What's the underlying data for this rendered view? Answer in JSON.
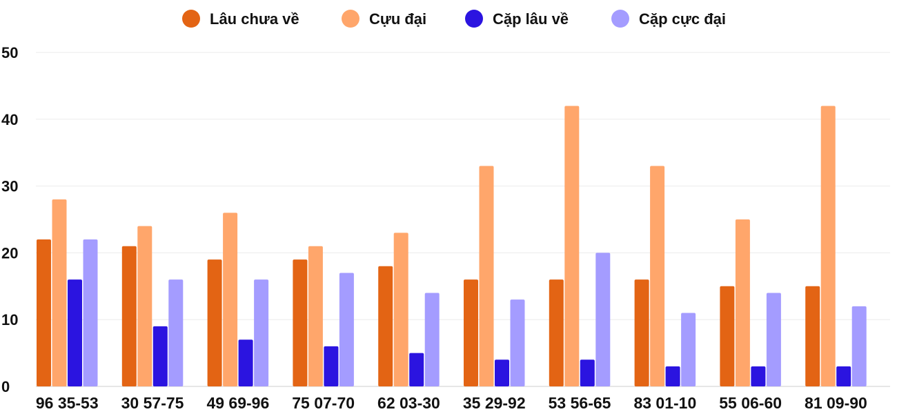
{
  "chart_data": {
    "type": "bar",
    "title": "",
    "xlabel": "",
    "ylabel": "",
    "ylim": [
      0,
      50
    ],
    "yticks": [
      0,
      10,
      20,
      30,
      40,
      50
    ],
    "grid": true,
    "legend_position": "top",
    "categories": [
      "96 35-53",
      "30 57-75",
      "49 69-96",
      "75 07-70",
      "62 03-30",
      "35 29-92",
      "53 56-65",
      "83 01-10",
      "55 06-60",
      "81 09-90"
    ],
    "series": [
      {
        "name": "Lâu chưa về",
        "color": "#e36414",
        "values": [
          22,
          21,
          19,
          19,
          18,
          16,
          16,
          16,
          15,
          15
        ]
      },
      {
        "name": "Cựu đại",
        "color": "#ffa66b",
        "values": [
          28,
          24,
          26,
          21,
          23,
          33,
          42,
          33,
          25,
          42
        ]
      },
      {
        "name": "Cặp lâu về",
        "color": "#2b14e0",
        "values": [
          16,
          9,
          7,
          6,
          5,
          4,
          4,
          3,
          3,
          3
        ]
      },
      {
        "name": "Cặp cực đại",
        "color": "#a49cff",
        "values": [
          22,
          16,
          16,
          17,
          14,
          13,
          20,
          11,
          14,
          12
        ]
      }
    ]
  }
}
